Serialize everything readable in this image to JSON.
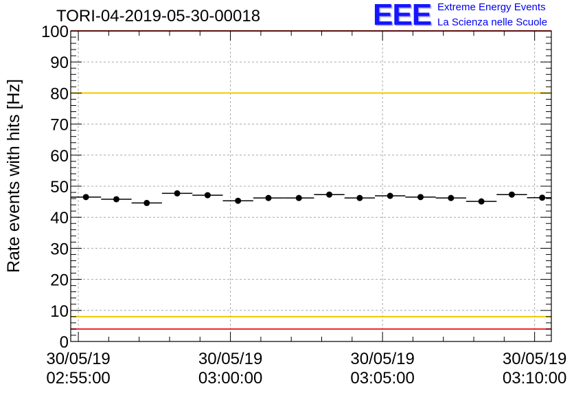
{
  "chart_data": {
    "type": "scatter",
    "title": "TORI-04-2019-05-30-00018",
    "ylabel": "Rate events with hits [Hz]",
    "xlabel": "",
    "ylim": [
      0,
      100
    ],
    "yticks": [
      0,
      10,
      20,
      30,
      40,
      50,
      60,
      70,
      80,
      90,
      100
    ],
    "x_range_minutes": [
      -0.25,
      15.55
    ],
    "x_ticks": [
      {
        "minute": 0,
        "date": "30/05/19",
        "time": "02:55:00"
      },
      {
        "minute": 5,
        "date": "30/05/19",
        "time": "03:00:00"
      },
      {
        "minute": 10,
        "date": "30/05/19",
        "time": "03:05:00"
      },
      {
        "minute": 15,
        "date": "30/05/19",
        "time": "03:10:00"
      }
    ],
    "bin_width_minutes": 1,
    "points": [
      {
        "x": 0.25,
        "y": 46.5
      },
      {
        "x": 1.25,
        "y": 45.8
      },
      {
        "x": 2.25,
        "y": 44.6
      },
      {
        "x": 3.25,
        "y": 47.7
      },
      {
        "x": 4.25,
        "y": 47.1
      },
      {
        "x": 5.25,
        "y": 45.3
      },
      {
        "x": 6.25,
        "y": 46.2
      },
      {
        "x": 7.25,
        "y": 46.2
      },
      {
        "x": 8.25,
        "y": 47.3
      },
      {
        "x": 9.25,
        "y": 46.2
      },
      {
        "x": 10.25,
        "y": 46.9
      },
      {
        "x": 11.25,
        "y": 46.5
      },
      {
        "x": 12.25,
        "y": 46.2
      },
      {
        "x": 13.25,
        "y": 45.1
      },
      {
        "x": 14.25,
        "y": 47.3
      },
      {
        "x": 15.25,
        "y": 46.3
      }
    ],
    "reference_lines": [
      {
        "y": 100,
        "color": "#ee2222"
      },
      {
        "y": 80,
        "color": "#f0c800"
      },
      {
        "y": 8,
        "color": "#f0c800"
      },
      {
        "y": 4,
        "color": "#ee2222"
      }
    ],
    "grid": true
  },
  "logo": {
    "mark": "EEE",
    "line1": "Extreme Energy Events",
    "line2": "La Scienza nelle Scuole"
  },
  "colors": {
    "marker": "#000000",
    "grid": "#a8a8a8",
    "logo": "#0000ee"
  }
}
